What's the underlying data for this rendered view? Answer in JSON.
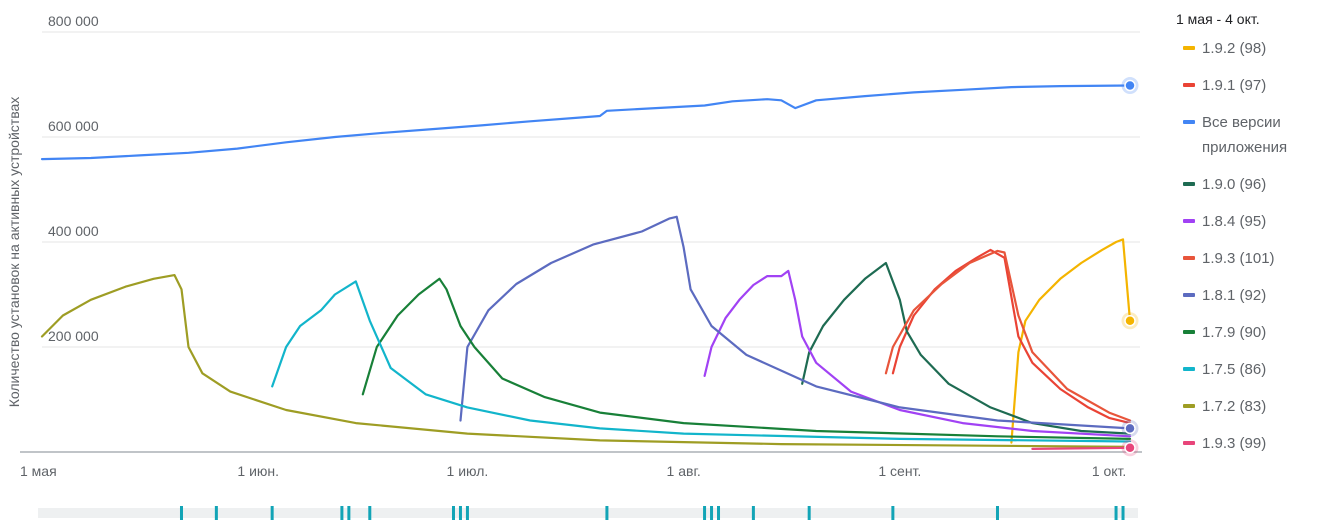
{
  "chart_data": {
    "type": "line",
    "title": "",
    "ylabel": "Количество установок на активных устройствах",
    "xlabel": "",
    "ylim": [
      0,
      800000
    ],
    "yticks": [
      {
        "value": 200000,
        "label": "200 000"
      },
      {
        "value": 400000,
        "label": "400 000"
      },
      {
        "value": 600000,
        "label": "600 000"
      },
      {
        "value": 800000,
        "label": "800 000"
      }
    ],
    "xlim": [
      "2020-05-01",
      "2020-10-04"
    ],
    "xticks": [
      {
        "date": "2020-05-01",
        "label": "1 мая"
      },
      {
        "date": "2020-06-01",
        "label": "1 июн."
      },
      {
        "date": "2020-07-01",
        "label": "1 июл."
      },
      {
        "date": "2020-08-01",
        "label": "1 авг."
      },
      {
        "date": "2020-09-01",
        "label": "1 сент."
      },
      {
        "date": "2020-10-01",
        "label": "1 окт."
      }
    ],
    "grid": true,
    "legend_position": "right",
    "legend_title": "1 мая - 4 окт.",
    "series": [
      {
        "name": "1.9.2 (98)",
        "color": "#f4b400",
        "end_marker": true,
        "points": [
          [
            "2020-09-17",
            18000
          ],
          [
            "2020-09-18",
            190000
          ],
          [
            "2020-09-19",
            250000
          ],
          [
            "2020-09-21",
            290000
          ],
          [
            "2020-09-24",
            330000
          ],
          [
            "2020-09-27",
            360000
          ],
          [
            "2020-09-30",
            385000
          ],
          [
            "2020-10-02",
            400000
          ],
          [
            "2020-10-03",
            405000
          ],
          [
            "2020-10-04",
            250000
          ]
        ]
      },
      {
        "name": "1.9.1 (97)",
        "color": "#ea4335",
        "points": [
          [
            "2020-08-31",
            150000
          ],
          [
            "2020-09-01",
            200000
          ],
          [
            "2020-09-03",
            260000
          ],
          [
            "2020-09-06",
            310000
          ],
          [
            "2020-09-09",
            345000
          ],
          [
            "2020-09-12",
            370000
          ],
          [
            "2020-09-14",
            385000
          ],
          [
            "2020-09-16",
            370000
          ],
          [
            "2020-09-18",
            220000
          ],
          [
            "2020-09-20",
            170000
          ],
          [
            "2020-09-24",
            120000
          ],
          [
            "2020-09-28",
            85000
          ],
          [
            "2020-10-01",
            65000
          ],
          [
            "2020-10-04",
            55000
          ]
        ]
      },
      {
        "name": "Все версии приложения",
        "color": "#4285f4",
        "end_marker": true,
        "points": [
          [
            "2020-05-01",
            558000
          ],
          [
            "2020-05-08",
            560000
          ],
          [
            "2020-05-15",
            565000
          ],
          [
            "2020-05-22",
            570000
          ],
          [
            "2020-05-29",
            578000
          ],
          [
            "2020-06-05",
            590000
          ],
          [
            "2020-06-12",
            600000
          ],
          [
            "2020-06-19",
            608000
          ],
          [
            "2020-06-26",
            615000
          ],
          [
            "2020-07-03",
            622000
          ],
          [
            "2020-07-10",
            630000
          ],
          [
            "2020-07-17",
            637000
          ],
          [
            "2020-07-20",
            640000
          ],
          [
            "2020-07-21",
            650000
          ],
          [
            "2020-07-28",
            655000
          ],
          [
            "2020-08-04",
            660000
          ],
          [
            "2020-08-08",
            668000
          ],
          [
            "2020-08-13",
            672000
          ],
          [
            "2020-08-15",
            670000
          ],
          [
            "2020-08-17",
            655000
          ],
          [
            "2020-08-20",
            670000
          ],
          [
            "2020-08-27",
            678000
          ],
          [
            "2020-09-03",
            685000
          ],
          [
            "2020-09-10",
            690000
          ],
          [
            "2020-09-17",
            695000
          ],
          [
            "2020-09-24",
            697000
          ],
          [
            "2020-10-04",
            698000
          ]
        ]
      },
      {
        "name": "1.9.0 (96)",
        "color": "#1e6b52",
        "points": [
          [
            "2020-08-18",
            130000
          ],
          [
            "2020-08-19",
            190000
          ],
          [
            "2020-08-21",
            240000
          ],
          [
            "2020-08-24",
            290000
          ],
          [
            "2020-08-27",
            330000
          ],
          [
            "2020-08-29",
            350000
          ],
          [
            "2020-08-30",
            360000
          ],
          [
            "2020-09-01",
            290000
          ],
          [
            "2020-09-02",
            230000
          ],
          [
            "2020-09-04",
            185000
          ],
          [
            "2020-09-08",
            130000
          ],
          [
            "2020-09-14",
            85000
          ],
          [
            "2020-09-20",
            55000
          ],
          [
            "2020-09-27",
            40000
          ],
          [
            "2020-10-04",
            35000
          ]
        ]
      },
      {
        "name": "1.8.4 (95)",
        "color": "#a142f4",
        "points": [
          [
            "2020-08-04",
            145000
          ],
          [
            "2020-08-05",
            200000
          ],
          [
            "2020-08-07",
            255000
          ],
          [
            "2020-08-09",
            290000
          ],
          [
            "2020-08-11",
            318000
          ],
          [
            "2020-08-13",
            335000
          ],
          [
            "2020-08-15",
            335000
          ],
          [
            "2020-08-16",
            345000
          ],
          [
            "2020-08-17",
            290000
          ],
          [
            "2020-08-18",
            220000
          ],
          [
            "2020-08-20",
            170000
          ],
          [
            "2020-08-25",
            115000
          ],
          [
            "2020-09-01",
            80000
          ],
          [
            "2020-09-10",
            55000
          ],
          [
            "2020-09-20",
            40000
          ],
          [
            "2020-10-04",
            30000
          ]
        ]
      },
      {
        "name": "1.9.3 (101)",
        "color": "#e8553b",
        "points": [
          [
            "2020-08-30",
            150000
          ],
          [
            "2020-08-31",
            200000
          ],
          [
            "2020-09-03",
            270000
          ],
          [
            "2020-09-07",
            320000
          ],
          [
            "2020-09-11",
            360000
          ],
          [
            "2020-09-15",
            383000
          ],
          [
            "2020-09-16",
            380000
          ],
          [
            "2020-09-18",
            260000
          ],
          [
            "2020-09-20",
            190000
          ],
          [
            "2020-09-25",
            120000
          ],
          [
            "2020-10-01",
            75000
          ],
          [
            "2020-10-04",
            60000
          ]
        ]
      },
      {
        "name": "1.8.1 (92)",
        "color": "#5c6bc0",
        "end_marker": true,
        "points": [
          [
            "2020-06-30",
            60000
          ],
          [
            "2020-07-01",
            200000
          ],
          [
            "2020-07-04",
            270000
          ],
          [
            "2020-07-08",
            320000
          ],
          [
            "2020-07-13",
            360000
          ],
          [
            "2020-07-19",
            395000
          ],
          [
            "2020-07-26",
            420000
          ],
          [
            "2020-07-30",
            445000
          ],
          [
            "2020-07-31",
            448000
          ],
          [
            "2020-08-01",
            390000
          ],
          [
            "2020-08-02",
            310000
          ],
          [
            "2020-08-05",
            240000
          ],
          [
            "2020-08-10",
            185000
          ],
          [
            "2020-08-20",
            125000
          ],
          [
            "2020-09-01",
            85000
          ],
          [
            "2020-09-15",
            60000
          ],
          [
            "2020-10-04",
            45000
          ]
        ]
      },
      {
        "name": "1.7.9 (90)",
        "color": "#188038",
        "points": [
          [
            "2020-06-16",
            110000
          ],
          [
            "2020-06-18",
            200000
          ],
          [
            "2020-06-21",
            260000
          ],
          [
            "2020-06-24",
            300000
          ],
          [
            "2020-06-27",
            330000
          ],
          [
            "2020-06-28",
            310000
          ],
          [
            "2020-06-30",
            240000
          ],
          [
            "2020-07-02",
            200000
          ],
          [
            "2020-07-06",
            140000
          ],
          [
            "2020-07-12",
            105000
          ],
          [
            "2020-07-20",
            75000
          ],
          [
            "2020-08-01",
            55000
          ],
          [
            "2020-08-20",
            40000
          ],
          [
            "2020-09-15",
            30000
          ],
          [
            "2020-10-04",
            25000
          ]
        ]
      },
      {
        "name": "1.7.5 (86)",
        "color": "#12b5cb",
        "points": [
          [
            "2020-06-03",
            125000
          ],
          [
            "2020-06-05",
            200000
          ],
          [
            "2020-06-07",
            240000
          ],
          [
            "2020-06-10",
            270000
          ],
          [
            "2020-06-12",
            300000
          ],
          [
            "2020-06-15",
            325000
          ],
          [
            "2020-06-17",
            250000
          ],
          [
            "2020-06-20",
            160000
          ],
          [
            "2020-06-25",
            110000
          ],
          [
            "2020-07-01",
            85000
          ],
          [
            "2020-07-10",
            60000
          ],
          [
            "2020-07-20",
            45000
          ],
          [
            "2020-08-01",
            35000
          ],
          [
            "2020-09-01",
            25000
          ],
          [
            "2020-10-04",
            20000
          ]
        ]
      },
      {
        "name": "1.7.2 (83)",
        "color": "#9e9d24",
        "points": [
          [
            "2020-05-01",
            220000
          ],
          [
            "2020-05-04",
            260000
          ],
          [
            "2020-05-08",
            290000
          ],
          [
            "2020-05-13",
            315000
          ],
          [
            "2020-05-17",
            330000
          ],
          [
            "2020-05-20",
            337000
          ],
          [
            "2020-05-21",
            310000
          ],
          [
            "2020-05-22",
            200000
          ],
          [
            "2020-05-24",
            150000
          ],
          [
            "2020-05-28",
            115000
          ],
          [
            "2020-06-05",
            80000
          ],
          [
            "2020-06-15",
            55000
          ],
          [
            "2020-07-01",
            35000
          ],
          [
            "2020-07-20",
            22000
          ],
          [
            "2020-08-15",
            15000
          ],
          [
            "2020-10-04",
            10000
          ]
        ]
      },
      {
        "name": "1.9.3 (99)",
        "color": "#e8457a",
        "end_marker": true,
        "points": [
          [
            "2020-09-20",
            6000
          ],
          [
            "2020-10-04",
            8000
          ]
        ]
      }
    ],
    "release_markers": {
      "color": "#12a4b6",
      "dates": [
        "2020-05-21",
        "2020-05-26",
        "2020-06-03",
        "2020-06-13",
        "2020-06-14",
        "2020-06-17",
        "2020-06-29",
        "2020-06-30",
        "2020-07-01",
        "2020-07-21",
        "2020-08-04",
        "2020-08-05",
        "2020-08-06",
        "2020-08-11",
        "2020-08-19",
        "2020-08-31",
        "2020-09-15",
        "2020-10-02",
        "2020-10-03"
      ]
    }
  }
}
